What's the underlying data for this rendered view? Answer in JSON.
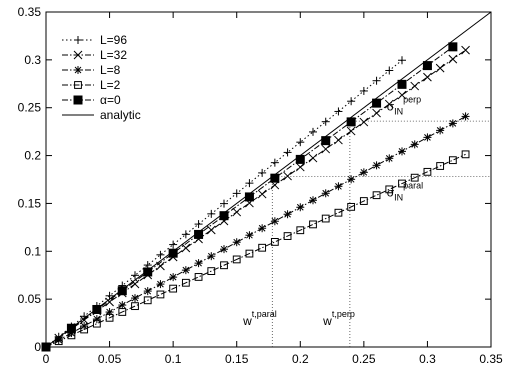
{
  "chart_data": {
    "type": "line",
    "title": "",
    "xlabel": "",
    "ylabel": "",
    "xlim": [
      0,
      0.35
    ],
    "ylim": [
      0,
      0.35
    ],
    "xticks": [
      "0",
      "0.05",
      "0.1",
      "0.15",
      "0.2",
      "0.25",
      "0.3",
      "0.35"
    ],
    "yticks": [
      "0",
      "0.05",
      "0.1",
      "0.15",
      "0.2",
      "0.25",
      "0.3",
      "0.35"
    ],
    "grid": false,
    "legend_position": "top-left",
    "series": [
      {
        "name": "L=96",
        "marker": "plus",
        "line": "dotted",
        "x": [
          0,
          0.01,
          0.02,
          0.03,
          0.04,
          0.05,
          0.06,
          0.07,
          0.08,
          0.09,
          0.1,
          0.11,
          0.12,
          0.13,
          0.14,
          0.15,
          0.16,
          0.17,
          0.18,
          0.19,
          0.2,
          0.21,
          0.22,
          0.23,
          0.24,
          0.25,
          0.26,
          0.27,
          0.28
        ],
        "y": [
          0,
          0.0107,
          0.0214,
          0.0321,
          0.0428,
          0.0535,
          0.0642,
          0.0749,
          0.0856,
          0.0963,
          0.107,
          0.1177,
          0.1284,
          0.1391,
          0.1498,
          0.1605,
          0.1712,
          0.1819,
          0.1926,
          0.2033,
          0.214,
          0.2247,
          0.2354,
          0.2461,
          0.2568,
          0.2675,
          0.2782,
          0.2889,
          0.2996
        ]
      },
      {
        "name": "L=32",
        "marker": "cross",
        "line": "dash-dot",
        "x": [
          0,
          0.01,
          0.02,
          0.03,
          0.04,
          0.05,
          0.06,
          0.07,
          0.08,
          0.09,
          0.1,
          0.11,
          0.12,
          0.13,
          0.14,
          0.15,
          0.16,
          0.17,
          0.18,
          0.19,
          0.2,
          0.21,
          0.22,
          0.23,
          0.24,
          0.25,
          0.26,
          0.27,
          0.28,
          0.29,
          0.3,
          0.31,
          0.32,
          0.33
        ],
        "y": [
          0,
          0.0094,
          0.0188,
          0.0282,
          0.0376,
          0.047,
          0.0564,
          0.0658,
          0.0752,
          0.0846,
          0.094,
          0.1034,
          0.1128,
          0.1222,
          0.1316,
          0.141,
          0.1504,
          0.1598,
          0.1692,
          0.1786,
          0.188,
          0.1974,
          0.2068,
          0.2162,
          0.2256,
          0.235,
          0.2444,
          0.2538,
          0.2632,
          0.2726,
          0.282,
          0.2914,
          0.3008,
          0.3102
        ]
      },
      {
        "name": "L=8",
        "marker": "asterisk",
        "line": "dash-dot",
        "x": [
          0,
          0.01,
          0.02,
          0.03,
          0.04,
          0.05,
          0.06,
          0.07,
          0.08,
          0.09,
          0.1,
          0.11,
          0.12,
          0.13,
          0.14,
          0.15,
          0.16,
          0.17,
          0.18,
          0.19,
          0.2,
          0.21,
          0.22,
          0.23,
          0.24,
          0.25,
          0.26,
          0.27,
          0.28,
          0.29,
          0.3,
          0.31,
          0.32,
          0.33
        ],
        "y": [
          0,
          0.0073,
          0.0146,
          0.0219,
          0.0292,
          0.0365,
          0.0438,
          0.0511,
          0.0584,
          0.0657,
          0.073,
          0.0803,
          0.0876,
          0.0949,
          0.1022,
          0.1095,
          0.1168,
          0.1241,
          0.1314,
          0.1387,
          0.146,
          0.1533,
          0.1606,
          0.1679,
          0.1752,
          0.1825,
          0.1898,
          0.1971,
          0.2044,
          0.2117,
          0.219,
          0.2263,
          0.2336,
          0.2409
        ]
      },
      {
        "name": "L=2",
        "marker": "open-square",
        "line": "dash-dot",
        "x": [
          0,
          0.01,
          0.02,
          0.03,
          0.04,
          0.05,
          0.06,
          0.07,
          0.08,
          0.09,
          0.1,
          0.11,
          0.12,
          0.13,
          0.14,
          0.15,
          0.16,
          0.17,
          0.18,
          0.19,
          0.2,
          0.21,
          0.22,
          0.23,
          0.24,
          0.25,
          0.26,
          0.27,
          0.28,
          0.29,
          0.3,
          0.31,
          0.32,
          0.33
        ],
        "y": [
          0,
          0.0061,
          0.0122,
          0.0183,
          0.0244,
          0.0305,
          0.0366,
          0.0427,
          0.0488,
          0.0549,
          0.061,
          0.0671,
          0.0732,
          0.0793,
          0.0854,
          0.0915,
          0.0976,
          0.1037,
          0.1098,
          0.1159,
          0.122,
          0.1281,
          0.1342,
          0.1403,
          0.1464,
          0.1525,
          0.1586,
          0.1647,
          0.1708,
          0.1769,
          0.183,
          0.1891,
          0.1952,
          0.2013
        ]
      },
      {
        "name": "α=0",
        "marker": "filled-square",
        "line": "dash-dot",
        "x": [
          0,
          0.02,
          0.04,
          0.06,
          0.08,
          0.1,
          0.12,
          0.14,
          0.16,
          0.18,
          0.2,
          0.22,
          0.24,
          0.26,
          0.28,
          0.3,
          0.32
        ],
        "y": [
          0,
          0.0196,
          0.0392,
          0.0588,
          0.0784,
          0.098,
          0.1176,
          0.1372,
          0.1568,
          0.1764,
          0.196,
          0.2156,
          0.2352,
          0.2548,
          0.2744,
          0.294,
          0.3136
        ]
      },
      {
        "name": "analytic",
        "marker": "none",
        "line": "solid",
        "x": [
          0,
          0.35
        ],
        "y": [
          0,
          0.35
        ]
      }
    ],
    "annotations": [
      {
        "base": "σ",
        "sub": "IN",
        "sup": "perp",
        "x": 0.268,
        "y": 0.247
      },
      {
        "base": "σ",
        "sub": "IN",
        "sup": "paral",
        "x": 0.268,
        "y": 0.157
      },
      {
        "base": "w",
        "sup": "t,paral",
        "x": 0.155,
        "y": 0.023
      },
      {
        "base": "w",
        "sup": "t,perp",
        "x": 0.218,
        "y": 0.023
      }
    ],
    "reference_lines": [
      {
        "x": 0.178,
        "y_to": 0.178,
        "style": "dotted"
      },
      {
        "x": 0.239,
        "y_to": 0.236,
        "style": "dotted"
      },
      {
        "y": 0.236,
        "x_from": 0.239,
        "x_to": 0.35,
        "style": "dotted"
      },
      {
        "y": 0.178,
        "x_from": 0.178,
        "x_to": 0.35,
        "style": "dotted"
      }
    ]
  }
}
